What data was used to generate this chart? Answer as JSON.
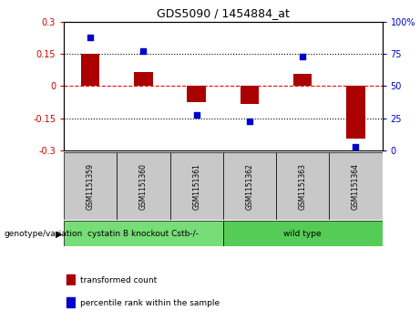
{
  "title": "GDS5090 / 1454884_at",
  "samples": [
    "GSM1151359",
    "GSM1151360",
    "GSM1151361",
    "GSM1151362",
    "GSM1151363",
    "GSM1151364"
  ],
  "bar_values": [
    0.148,
    0.065,
    -0.075,
    -0.085,
    0.055,
    -0.245
  ],
  "dot_values": [
    88,
    77,
    28,
    23,
    73,
    3
  ],
  "bar_color": "#aa0000",
  "dot_color": "#0000cc",
  "ylim_left": [
    -0.3,
    0.3
  ],
  "ylim_right": [
    0,
    100
  ],
  "yticks_left": [
    -0.3,
    -0.15,
    0.0,
    0.15,
    0.3
  ],
  "yticks_right": [
    0,
    25,
    50,
    75,
    100
  ],
  "ytick_labels_left": [
    "-0.3",
    "-0.15",
    "0",
    "0.15",
    "0.3"
  ],
  "ytick_labels_right": [
    "0",
    "25",
    "50",
    "75",
    "100%"
  ],
  "hlines": [
    0.15,
    0.0,
    -0.15
  ],
  "hline_styles": [
    "dotted",
    "dashed",
    "dotted"
  ],
  "hline_colors": [
    "black",
    "red",
    "black"
  ],
  "groups": [
    {
      "label": "cystatin B knockout Cstb-/-",
      "samples": [
        0,
        1,
        2
      ],
      "color": "#77dd77"
    },
    {
      "label": "wild type",
      "samples": [
        3,
        4,
        5
      ],
      "color": "#55cc55"
    }
  ],
  "genotype_label": "genotype/variation",
  "legend_bar_label": "transformed count",
  "legend_dot_label": "percentile rank within the sample",
  "bar_width": 0.35,
  "background_color": "#ffffff",
  "plot_bg": "#ffffff",
  "left_tick_color": "#cc0000",
  "right_tick_color": "#0000cc",
  "sample_box_color": "#c8c8c8"
}
